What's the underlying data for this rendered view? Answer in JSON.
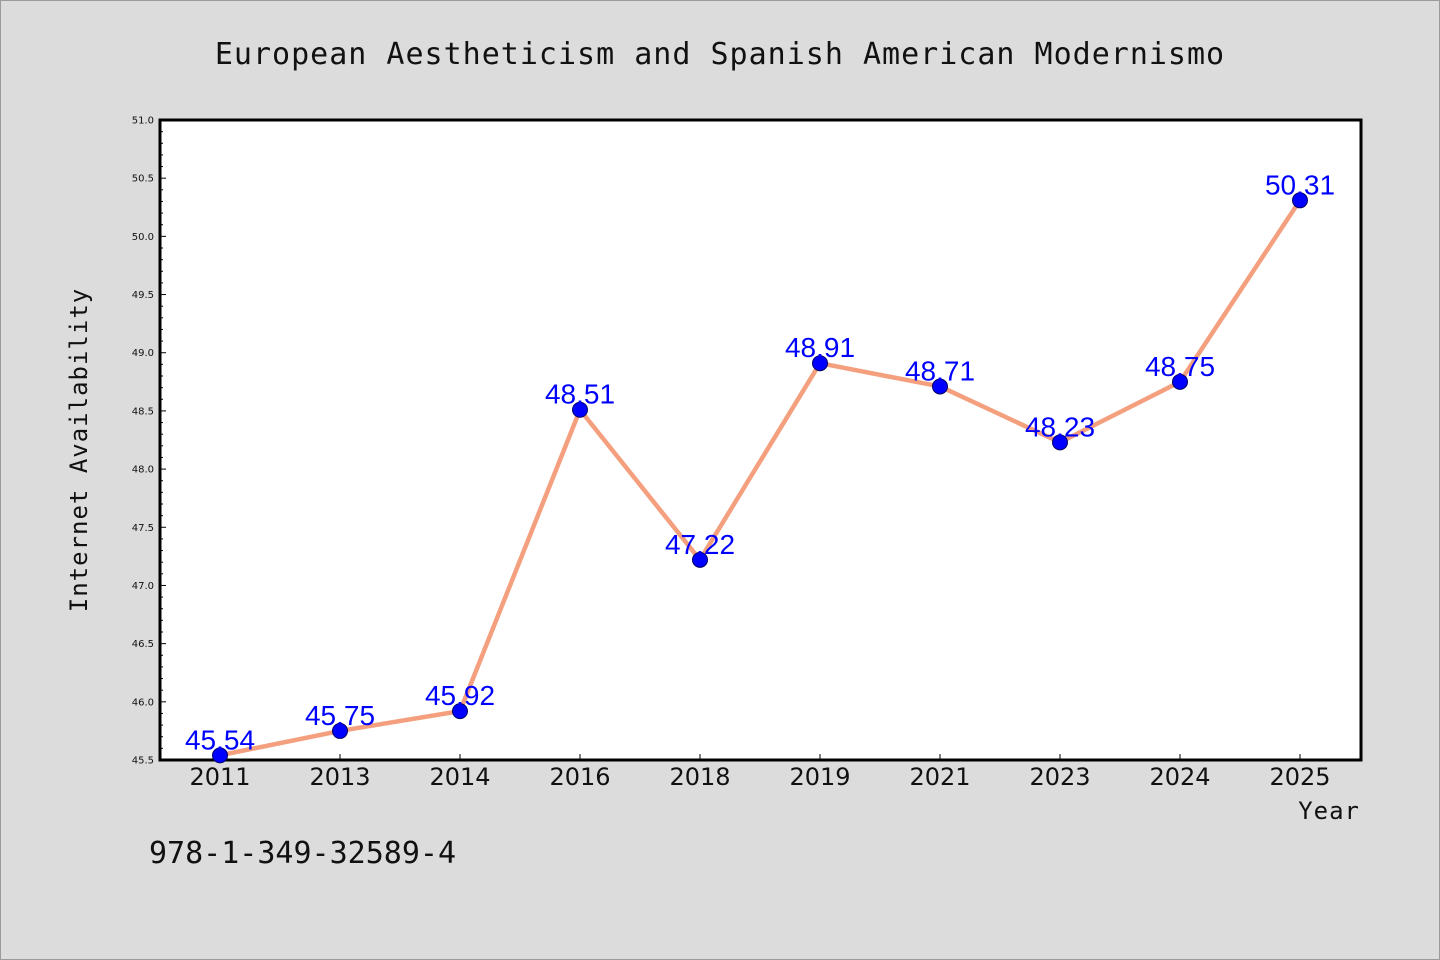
{
  "chart_data": {
    "type": "line",
    "title": "European Aestheticism and Spanish American Modernismo",
    "xlabel": "Year",
    "ylabel": "Internet Availability",
    "categories": [
      "2011",
      "2013",
      "2014",
      "2016",
      "2018",
      "2019",
      "2021",
      "2023",
      "2024",
      "2025"
    ],
    "values": [
      45.54,
      45.75,
      45.92,
      48.51,
      47.22,
      48.91,
      48.71,
      48.23,
      48.75,
      50.31
    ],
    "value_labels": [
      "45.54",
      "45.75",
      "45.92",
      "48.51",
      "47.22",
      "48.91",
      "48.71",
      "48.23",
      "48.75",
      "50.31"
    ],
    "ylim": [
      45.5,
      51.0
    ],
    "yticks": [
      "45.5",
      "46.0",
      "46.5",
      "47.0",
      "47.5",
      "48.0",
      "48.5",
      "49.0",
      "49.5",
      "50.0",
      "50.5",
      "51.0"
    ],
    "grid": false,
    "line_color": "#f4a07f",
    "marker_color": "#0000ff",
    "label_color": "#0000ff"
  },
  "footer": {
    "isbn": "978-1-349-32589-4"
  }
}
